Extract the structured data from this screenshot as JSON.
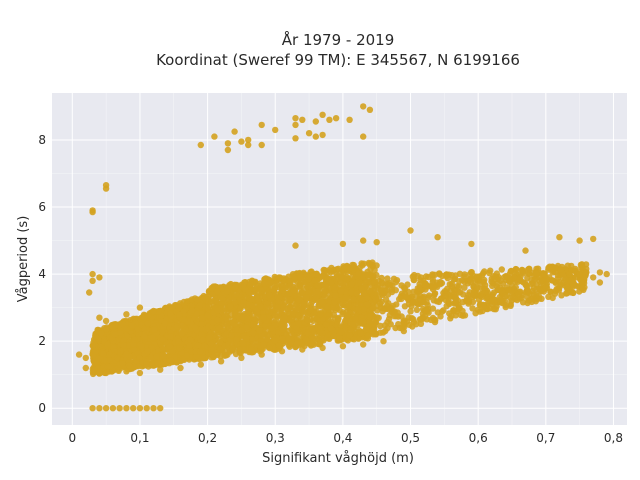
{
  "chart_data": {
    "type": "scatter",
    "title_lines": [
      "År 1979 - 2019",
      "Koordinat (Sweref 99 TM): E 345567, N 6199166"
    ],
    "xlabel": "Signifikant våghöjd (m)",
    "ylabel": "Vågperiod (s)",
    "xlim": [
      -0.03,
      0.82
    ],
    "ylim": [
      -0.5,
      9.4
    ],
    "x_ticks": [
      0,
      0.1,
      0.2,
      0.3,
      0.4,
      0.5,
      0.6,
      0.7,
      0.8
    ],
    "x_tick_labels": [
      "0",
      "0,1",
      "0,2",
      "0,3",
      "0,4",
      "0,5",
      "0,6",
      "0,7",
      "0,8"
    ],
    "y_ticks": [
      0,
      2,
      4,
      6,
      8
    ],
    "y_tick_labels": [
      "0",
      "2",
      "4",
      "6",
      "8"
    ],
    "grid": true,
    "background": "#e8e9f0",
    "point_color": "#d4a21f",
    "series": [
      {
        "points": [
          [
            0.01,
            1.6
          ],
          [
            0.02,
            1.5
          ],
          [
            0.02,
            1.2
          ],
          [
            0.025,
            3.45
          ],
          [
            0.03,
            3.8
          ],
          [
            0.03,
            4.0
          ],
          [
            0.04,
            3.9
          ],
          [
            0.03,
            5.9
          ],
          [
            0.03,
            5.85
          ],
          [
            0.05,
            6.65
          ],
          [
            0.05,
            6.55
          ],
          [
            0.03,
            0.0
          ],
          [
            0.04,
            0.0
          ],
          [
            0.05,
            0.0
          ],
          [
            0.06,
            0.0
          ],
          [
            0.07,
            0.0
          ],
          [
            0.08,
            0.0
          ],
          [
            0.09,
            0.0
          ],
          [
            0.1,
            0.0
          ],
          [
            0.11,
            0.0
          ],
          [
            0.12,
            0.0
          ],
          [
            0.13,
            0.0
          ],
          [
            0.04,
            2.7
          ],
          [
            0.05,
            2.6
          ],
          [
            0.06,
            2.4
          ],
          [
            0.08,
            2.8
          ],
          [
            0.1,
            3.0
          ],
          [
            0.12,
            2.9
          ],
          [
            0.05,
            1.05
          ],
          [
            0.08,
            1.1
          ],
          [
            0.1,
            1.05
          ],
          [
            0.13,
            1.15
          ],
          [
            0.16,
            1.2
          ],
          [
            0.19,
            1.3
          ],
          [
            0.22,
            1.4
          ],
          [
            0.25,
            1.5
          ],
          [
            0.28,
            1.6
          ],
          [
            0.31,
            1.7
          ],
          [
            0.34,
            1.75
          ],
          [
            0.37,
            1.8
          ],
          [
            0.4,
            1.85
          ],
          [
            0.43,
            1.9
          ],
          [
            0.46,
            2.0
          ],
          [
            0.49,
            2.3
          ],
          [
            0.49,
            2.55
          ],
          [
            0.19,
            7.85
          ],
          [
            0.21,
            8.1
          ],
          [
            0.23,
            7.9
          ],
          [
            0.23,
            7.7
          ],
          [
            0.24,
            8.25
          ],
          [
            0.25,
            7.95
          ],
          [
            0.26,
            7.85
          ],
          [
            0.26,
            8.0
          ],
          [
            0.28,
            7.85
          ],
          [
            0.28,
            8.45
          ],
          [
            0.3,
            8.3
          ],
          [
            0.33,
            8.65
          ],
          [
            0.33,
            8.45
          ],
          [
            0.33,
            8.05
          ],
          [
            0.34,
            8.6
          ],
          [
            0.35,
            8.2
          ],
          [
            0.36,
            8.55
          ],
          [
            0.36,
            8.1
          ],
          [
            0.37,
            8.75
          ],
          [
            0.37,
            8.15
          ],
          [
            0.38,
            8.6
          ],
          [
            0.39,
            8.65
          ],
          [
            0.41,
            8.6
          ],
          [
            0.43,
            8.1
          ],
          [
            0.43,
            9.0
          ],
          [
            0.44,
            8.9
          ],
          [
            0.33,
            4.85
          ],
          [
            0.4,
            4.9
          ],
          [
            0.43,
            5.0
          ],
          [
            0.45,
            4.95
          ],
          [
            0.5,
            5.3
          ],
          [
            0.54,
            5.1
          ],
          [
            0.59,
            4.9
          ],
          [
            0.67,
            4.7
          ],
          [
            0.72,
            5.1
          ],
          [
            0.75,
            5.0
          ],
          [
            0.77,
            5.05
          ],
          [
            0.62,
            3.2
          ],
          [
            0.64,
            3.35
          ],
          [
            0.66,
            3.4
          ],
          [
            0.68,
            3.5
          ],
          [
            0.7,
            3.6
          ],
          [
            0.72,
            3.6
          ],
          [
            0.74,
            3.7
          ],
          [
            0.75,
            4.0
          ],
          [
            0.76,
            4.05
          ],
          [
            0.77,
            3.9
          ],
          [
            0.78,
            3.75
          ],
          [
            0.78,
            4.05
          ],
          [
            0.79,
            4.0
          ]
        ]
      }
    ],
    "dense_bands": [
      {
        "x_range": [
          0.03,
          0.2
        ],
        "y_low_start": 1.0,
        "y_low_end": 1.5,
        "y_high_start": 2.3,
        "y_high_end": 3.4,
        "count": 1700
      },
      {
        "x_range": [
          0.2,
          0.45
        ],
        "y_low_start": 1.5,
        "y_low_end": 2.1,
        "y_high_start": 3.6,
        "y_high_end": 4.4,
        "count": 1800
      },
      {
        "x_range": [
          0.45,
          0.76
        ],
        "y_low_start": 2.2,
        "y_low_end": 3.5,
        "y_high_start": 3.9,
        "y_high_end": 4.3,
        "count": 650
      }
    ]
  }
}
